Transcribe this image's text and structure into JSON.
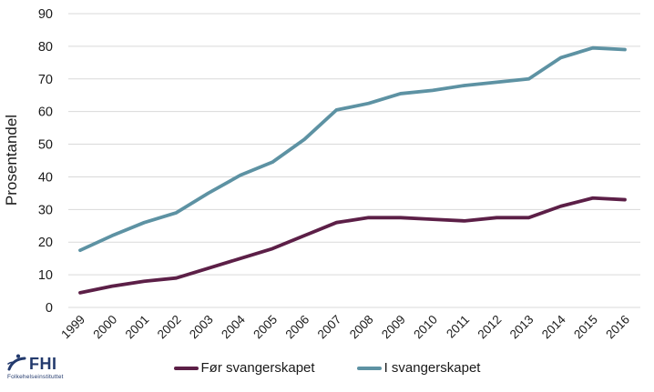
{
  "chart_data": {
    "type": "line",
    "title": "",
    "xlabel": "",
    "ylabel": "Prosentandel",
    "ylim": [
      0,
      90
    ],
    "ytick_step": 10,
    "grid": true,
    "legend_position": "bottom",
    "x": [
      "1999",
      "2000",
      "2001",
      "2002",
      "2003",
      "2004",
      "2005",
      "2006",
      "2007",
      "2008",
      "2009",
      "2010",
      "2011",
      "2012",
      "2013",
      "2014",
      "2015",
      "2016"
    ],
    "series": [
      {
        "name": "Før svangerskapet",
        "color": "#5c1f47",
        "values": [
          4.5,
          6.5,
          8,
          9,
          12,
          15,
          18,
          22,
          26,
          27.5,
          27.5,
          27,
          26.5,
          27.5,
          27.5,
          31,
          33.5,
          33
        ]
      },
      {
        "name": "I svangerskapet",
        "color": "#5d92a3",
        "values": [
          17.5,
          22,
          26,
          29,
          35,
          40.5,
          44.5,
          51.5,
          60.5,
          62.5,
          65.5,
          66.5,
          68,
          69,
          70,
          76.5,
          79.5,
          79
        ]
      }
    ]
  },
  "colors": {
    "grid": "#d9d9d9",
    "axis_text": "#1a1a1a",
    "background": "#ffffff",
    "logo_navy": "#233a6d"
  },
  "logo": {
    "text": "FHI",
    "subtext": "Folkehelseinstituttet"
  }
}
